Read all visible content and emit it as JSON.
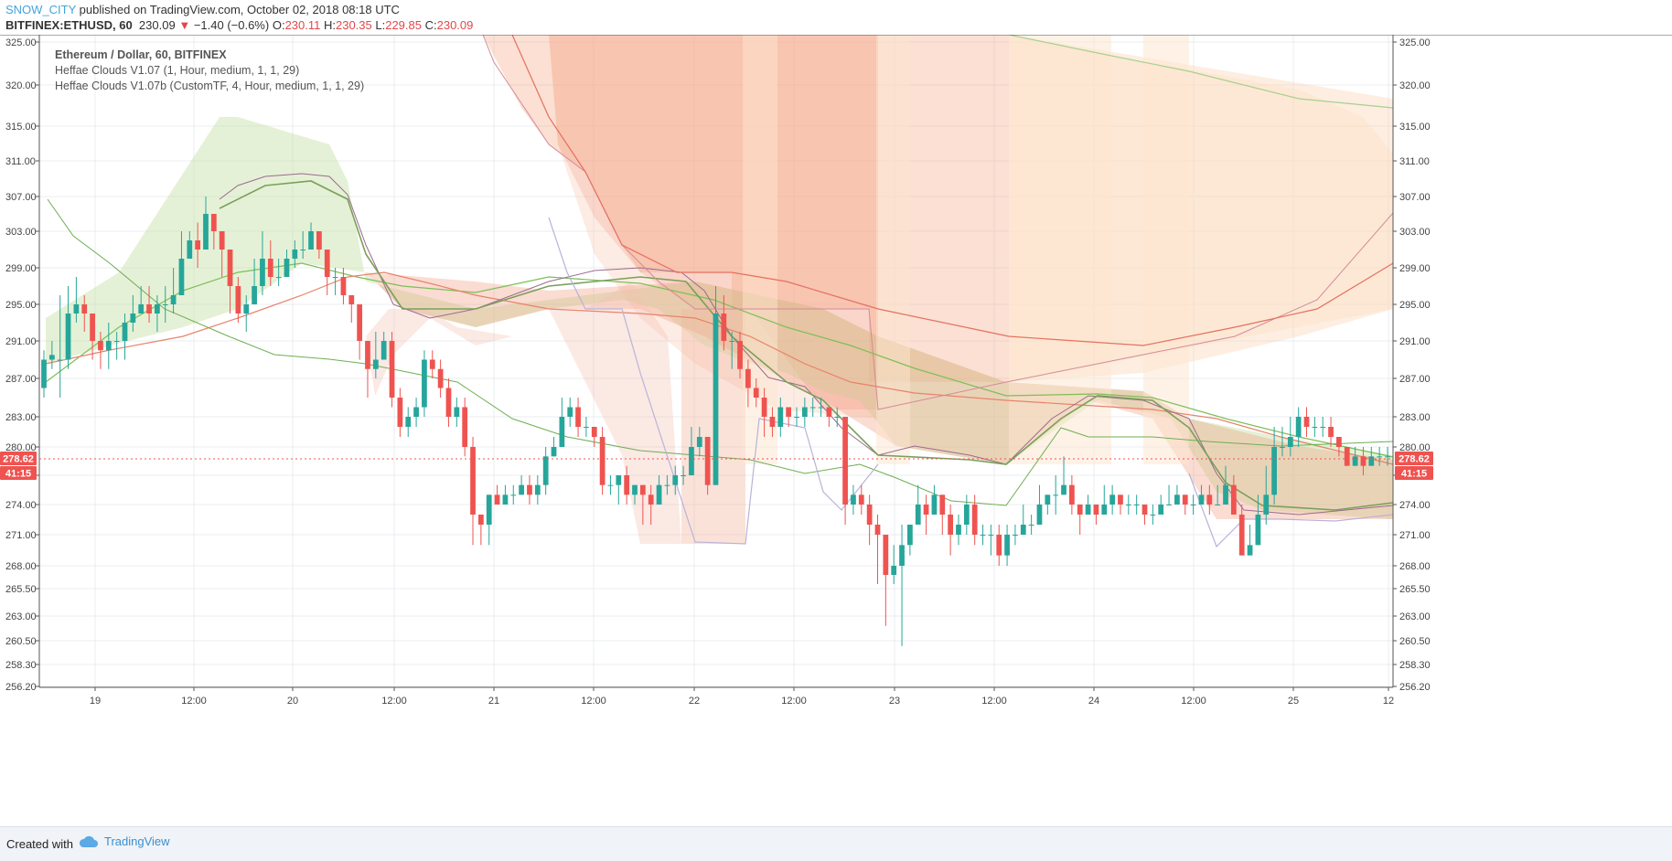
{
  "header": {
    "author": "SNOW_CITY",
    "published": " published on TradingView.com, October 02, 2018 08:18 UTC",
    "symbol": "BITFINEX:ETHUSD, 60",
    "last": "230.09",
    "change_arrow": "▼",
    "change": "−1.40 (−0.6%)",
    "o_label": "O:",
    "o": "230.11",
    "h_label": "H:",
    "h": "230.35",
    "l_label": "L:",
    "l": "229.85",
    "c_label": "C:",
    "c": "230.09"
  },
  "legend": {
    "line1": "Ethereum / Dollar, 60, BITFINEX",
    "line2": "Heffae Clouds V1.07 (1, Hour, medium, 1, 1, 29)",
    "line3": "Heffae Clouds V1.07b (CustomTF, 4, Hour, medium, 1, 1, 29)"
  },
  "price_tags": {
    "last_price": "278.62",
    "countdown": "41:15",
    "color": "#ef5350"
  },
  "footer": {
    "created": "Created with",
    "brand": "TradingView",
    "brand_icon": "cloud-icon"
  },
  "colors": {
    "up": "#26a69a",
    "down": "#ef5350",
    "grid": "#e8ecf0",
    "cloud_green": "#8bc34a",
    "cloud_red": "#f4a582"
  },
  "chart_data": {
    "type": "candlestick",
    "y_ticks": [
      "325.00",
      "320.00",
      "315.00",
      "311.00",
      "307.00",
      "303.00",
      "299.00",
      "295.00",
      "291.00",
      "287.00",
      "283.00",
      "280.00",
      "277.00",
      "274.00",
      "271.00",
      "268.00",
      "265.50",
      "263.00",
      "260.50",
      "258.30",
      "256.20"
    ],
    "x_ticks": [
      "19",
      "12:00",
      "20",
      "12:00",
      "21",
      "12:00",
      "22",
      "12:00",
      "23",
      "12:00",
      "24",
      "12:00",
      "25",
      "12"
    ],
    "ylim": [
      256.2,
      325.0
    ],
    "candles": [
      [
        286,
        289,
        290,
        285
      ],
      [
        289,
        289.5,
        291,
        288
      ],
      [
        289,
        289,
        296,
        285
      ],
      [
        289,
        294,
        297,
        288
      ],
      [
        294,
        295,
        298,
        293
      ],
      [
        295,
        294,
        296,
        292
      ],
      [
        294,
        291,
        294,
        289
      ],
      [
        291,
        290,
        292,
        288
      ],
      [
        290,
        291,
        293,
        288
      ],
      [
        291,
        291,
        292,
        289
      ],
      [
        291,
        293,
        294,
        289
      ],
      [
        293,
        294,
        296,
        292
      ],
      [
        294,
        295,
        297,
        294
      ],
      [
        295,
        294,
        297,
        293
      ],
      [
        294,
        295,
        296,
        292
      ],
      [
        295,
        295,
        297,
        293
      ],
      [
        295,
        296,
        299,
        294
      ],
      [
        296,
        300,
        303,
        296
      ],
      [
        300,
        302,
        303,
        300
      ],
      [
        302,
        301,
        304,
        299
      ],
      [
        301,
        305,
        307,
        301
      ],
      [
        305,
        303,
        305,
        301
      ],
      [
        303,
        301,
        303,
        298
      ],
      [
        301,
        297,
        301,
        294
      ],
      [
        297,
        294,
        298,
        293
      ],
      [
        294,
        295,
        296,
        292
      ],
      [
        295,
        297,
        300,
        295
      ],
      [
        297,
        300,
        303,
        296
      ],
      [
        300,
        298,
        302,
        297
      ],
      [
        298,
        298,
        300,
        297
      ],
      [
        298,
        300,
        301,
        298
      ],
      [
        300,
        301,
        302,
        299
      ],
      [
        301,
        301,
        303,
        300
      ],
      [
        301,
        303,
        304,
        301
      ],
      [
        303,
        301,
        303,
        300
      ],
      [
        301,
        298,
        301,
        296
      ],
      [
        298,
        298,
        299,
        296
      ],
      [
        298,
        296,
        299,
        295
      ],
      [
        296,
        295,
        296,
        293
      ],
      [
        295,
        291,
        295,
        289
      ],
      [
        291,
        288,
        291,
        285
      ],
      [
        288,
        289,
        292,
        287
      ],
      [
        289,
        291,
        292,
        289
      ],
      [
        291,
        285,
        292,
        284
      ],
      [
        285,
        282,
        286,
        281
      ],
      [
        282,
        283,
        284,
        281
      ],
      [
        283,
        284,
        285,
        282
      ],
      [
        284,
        289,
        290,
        283
      ],
      [
        289,
        288,
        290,
        287
      ],
      [
        288,
        286,
        289,
        285
      ],
      [
        286,
        283,
        287,
        282
      ],
      [
        283,
        284,
        285,
        282
      ],
      [
        284,
        280,
        285,
        279
      ],
      [
        280,
        273,
        281,
        270
      ],
      [
        273,
        272,
        273,
        270
      ],
      [
        272,
        275,
        275,
        270
      ],
      [
        275,
        274,
        276,
        274
      ],
      [
        274,
        275,
        276,
        274
      ],
      [
        275,
        275,
        276,
        274
      ],
      [
        275,
        276,
        277,
        275
      ],
      [
        276,
        275,
        277,
        274
      ],
      [
        275,
        276,
        277,
        274
      ],
      [
        276,
        279,
        280,
        275
      ],
      [
        279,
        280,
        281,
        279
      ],
      [
        280,
        283,
        285,
        280
      ],
      [
        283,
        284,
        285,
        282
      ],
      [
        284,
        282,
        285,
        281
      ],
      [
        282,
        282,
        283,
        281
      ],
      [
        282,
        281,
        282,
        280
      ],
      [
        281,
        276,
        282,
        275
      ],
      [
        276,
        276,
        277,
        275
      ],
      [
        276,
        277,
        277,
        274
      ],
      [
        277,
        275,
        278,
        274
      ],
      [
        275,
        276,
        276,
        274
      ],
      [
        276,
        275,
        276,
        272
      ],
      [
        275,
        274,
        276,
        272
      ],
      [
        274,
        276,
        277,
        274
      ],
      [
        276,
        276,
        277,
        275
      ],
      [
        276,
        277,
        278,
        275
      ],
      [
        277,
        277,
        278,
        276
      ],
      [
        277,
        280,
        282,
        277
      ],
      [
        280,
        281,
        282,
        279
      ],
      [
        281,
        276,
        281,
        275
      ],
      [
        276,
        294,
        297,
        276
      ],
      [
        294,
        291,
        296,
        290
      ],
      [
        291,
        291,
        292,
        288
      ],
      [
        291,
        288,
        292,
        287
      ],
      [
        288,
        286,
        289,
        284
      ],
      [
        286,
        285,
        287,
        284
      ],
      [
        285,
        283,
        286,
        281
      ],
      [
        283,
        282,
        284,
        281
      ],
      [
        282,
        284,
        285,
        281
      ],
      [
        284,
        283,
        284,
        282
      ],
      [
        283,
        283,
        284,
        282
      ],
      [
        283,
        284,
        285,
        282
      ],
      [
        284,
        284,
        285,
        283
      ],
      [
        284,
        284,
        285,
        283
      ],
      [
        284,
        283,
        284,
        282
      ],
      [
        283,
        283,
        284,
        282
      ],
      [
        283,
        274,
        283,
        272
      ],
      [
        274,
        275,
        276,
        273
      ],
      [
        275,
        274,
        276,
        273
      ],
      [
        274,
        272,
        275,
        270
      ],
      [
        272,
        271,
        273,
        266
      ],
      [
        271,
        267,
        271,
        262
      ],
      [
        267,
        268,
        270,
        266
      ],
      [
        268,
        270,
        272,
        260
      ],
      [
        270,
        272,
        272,
        269
      ],
      [
        272,
        274,
        276,
        272
      ],
      [
        274,
        273,
        275,
        271
      ],
      [
        273,
        275,
        276,
        273
      ],
      [
        275,
        273,
        275,
        271
      ],
      [
        273,
        271,
        274,
        269
      ],
      [
        271,
        272,
        273,
        270
      ],
      [
        272,
        274,
        275,
        271
      ],
      [
        274,
        271,
        275,
        270
      ],
      [
        271,
        271,
        272,
        270
      ],
      [
        271,
        271,
        272,
        269
      ],
      [
        271,
        269,
        272,
        268
      ],
      [
        269,
        271,
        272,
        268
      ],
      [
        271,
        271,
        272,
        270
      ],
      [
        271,
        272,
        274,
        271
      ],
      [
        272,
        272,
        273,
        271
      ],
      [
        272,
        274,
        276,
        272
      ],
      [
        274,
        275,
        275,
        273
      ],
      [
        275,
        275,
        277,
        273
      ],
      [
        275,
        276,
        279,
        275
      ],
      [
        276,
        274,
        277,
        273
      ],
      [
        274,
        273,
        274,
        271
      ],
      [
        273,
        274,
        275,
        273
      ],
      [
        274,
        273,
        274,
        272
      ],
      [
        273,
        274,
        276,
        273
      ],
      [
        274,
        275,
        276,
        273
      ],
      [
        275,
        274,
        275,
        273
      ],
      [
        274,
        274,
        275,
        273
      ],
      [
        274,
        274,
        275,
        273
      ],
      [
        274,
        273,
        274,
        272
      ],
      [
        273,
        273,
        274,
        272
      ],
      [
        273,
        274,
        275,
        273
      ],
      [
        274,
        274,
        276,
        274
      ],
      [
        274,
        275,
        276,
        274
      ],
      [
        275,
        274,
        275,
        273
      ],
      [
        274,
        274,
        275,
        273
      ],
      [
        274,
        275,
        276,
        274
      ],
      [
        275,
        274,
        276,
        273
      ],
      [
        274,
        274,
        276,
        274
      ],
      [
        274,
        276,
        278,
        274
      ],
      [
        276,
        273,
        277,
        273
      ],
      [
        273,
        269,
        274,
        269
      ],
      [
        269,
        270,
        272,
        270
      ],
      [
        270,
        273,
        275,
        270
      ],
      [
        273,
        275,
        278,
        272
      ],
      [
        275,
        280,
        282,
        274
      ],
      [
        280,
        280,
        282,
        279
      ],
      [
        280,
        281,
        283,
        279
      ],
      [
        281,
        283,
        284,
        280
      ],
      [
        283,
        282,
        284,
        281
      ],
      [
        282,
        282,
        283,
        281
      ],
      [
        282,
        282,
        283,
        281
      ],
      [
        282,
        281,
        283,
        280
      ],
      [
        281,
        280,
        281,
        279
      ],
      [
        280,
        278,
        280,
        278
      ],
      [
        278,
        279,
        280,
        278
      ],
      [
        279,
        278,
        280,
        277
      ],
      [
        278,
        279,
        280,
        278
      ],
      [
        279,
        279,
        280,
        278
      ],
      [
        279,
        279,
        280,
        278
      ]
    ]
  }
}
